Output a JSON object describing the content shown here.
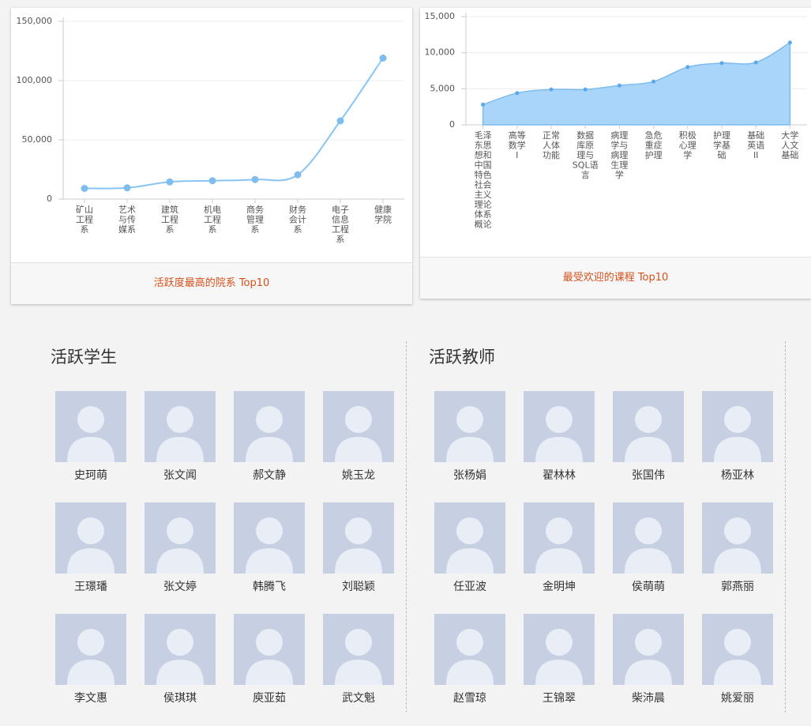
{
  "chart_data": [
    {
      "type": "line",
      "title": "活跃度最高的院系 Top10",
      "categories": [
        "矿山工程系",
        "艺术与传媒系",
        "建筑工程系",
        "机电工程系",
        "商务管理系",
        "财务会计系",
        "电子信息工程系",
        "健康学院"
      ],
      "values": [
        9000,
        9500,
        14500,
        15500,
        16500,
        20500,
        66000,
        119000
      ],
      "color": "#88c4f4",
      "ylim": [
        0,
        150000
      ],
      "yticks": [
        0,
        {
          "value": 50000,
          "label": "50,000"
        },
        {
          "value": 100000,
          "label": "100,000"
        },
        {
          "value": 150000,
          "label": "150,000"
        }
      ],
      "grid": true
    },
    {
      "type": "area",
      "title": "最受欢迎的课程 Top10",
      "categories": [
        "毛泽东思想和中国特色社会主义理论体系概论",
        "高等数学I",
        "正常人体功能",
        "数据库原理与SQL语言",
        "病理学与病理生理学",
        "急危重症护理",
        "积极心理学",
        "护理学基础",
        "基础英语II",
        "大学人文基础"
      ],
      "values": [
        2800,
        4400,
        4900,
        4900,
        5450,
        6000,
        8000,
        8550,
        8650,
        11400
      ],
      "color": "#a9d5fb",
      "ylim": [
        0,
        15000
      ],
      "yticks": [
        0,
        {
          "value": 5000,
          "label": "5,000"
        },
        {
          "value": 10000,
          "label": "10,000"
        },
        {
          "value": 15000,
          "label": "15,000"
        }
      ],
      "grid": true
    }
  ],
  "students": {
    "title": "活跃学生",
    "names": [
      "史珂萌",
      "张文闻",
      "郝文静",
      "姚玉龙",
      "王璟璠",
      "张文婷",
      "韩腾飞",
      "刘聪颖",
      "李文惠",
      "侯琪琪",
      "庾亚茹",
      "武文魁"
    ]
  },
  "teachers": {
    "title": "活跃教师",
    "names": [
      "张杨娟",
      "翟林林",
      "张国伟",
      "杨亚林",
      "任亚波",
      "金明坤",
      "侯萌萌",
      "郭燕丽",
      "赵雪琼",
      "王锦翠",
      "柴沛晨",
      "姚爱丽"
    ]
  }
}
